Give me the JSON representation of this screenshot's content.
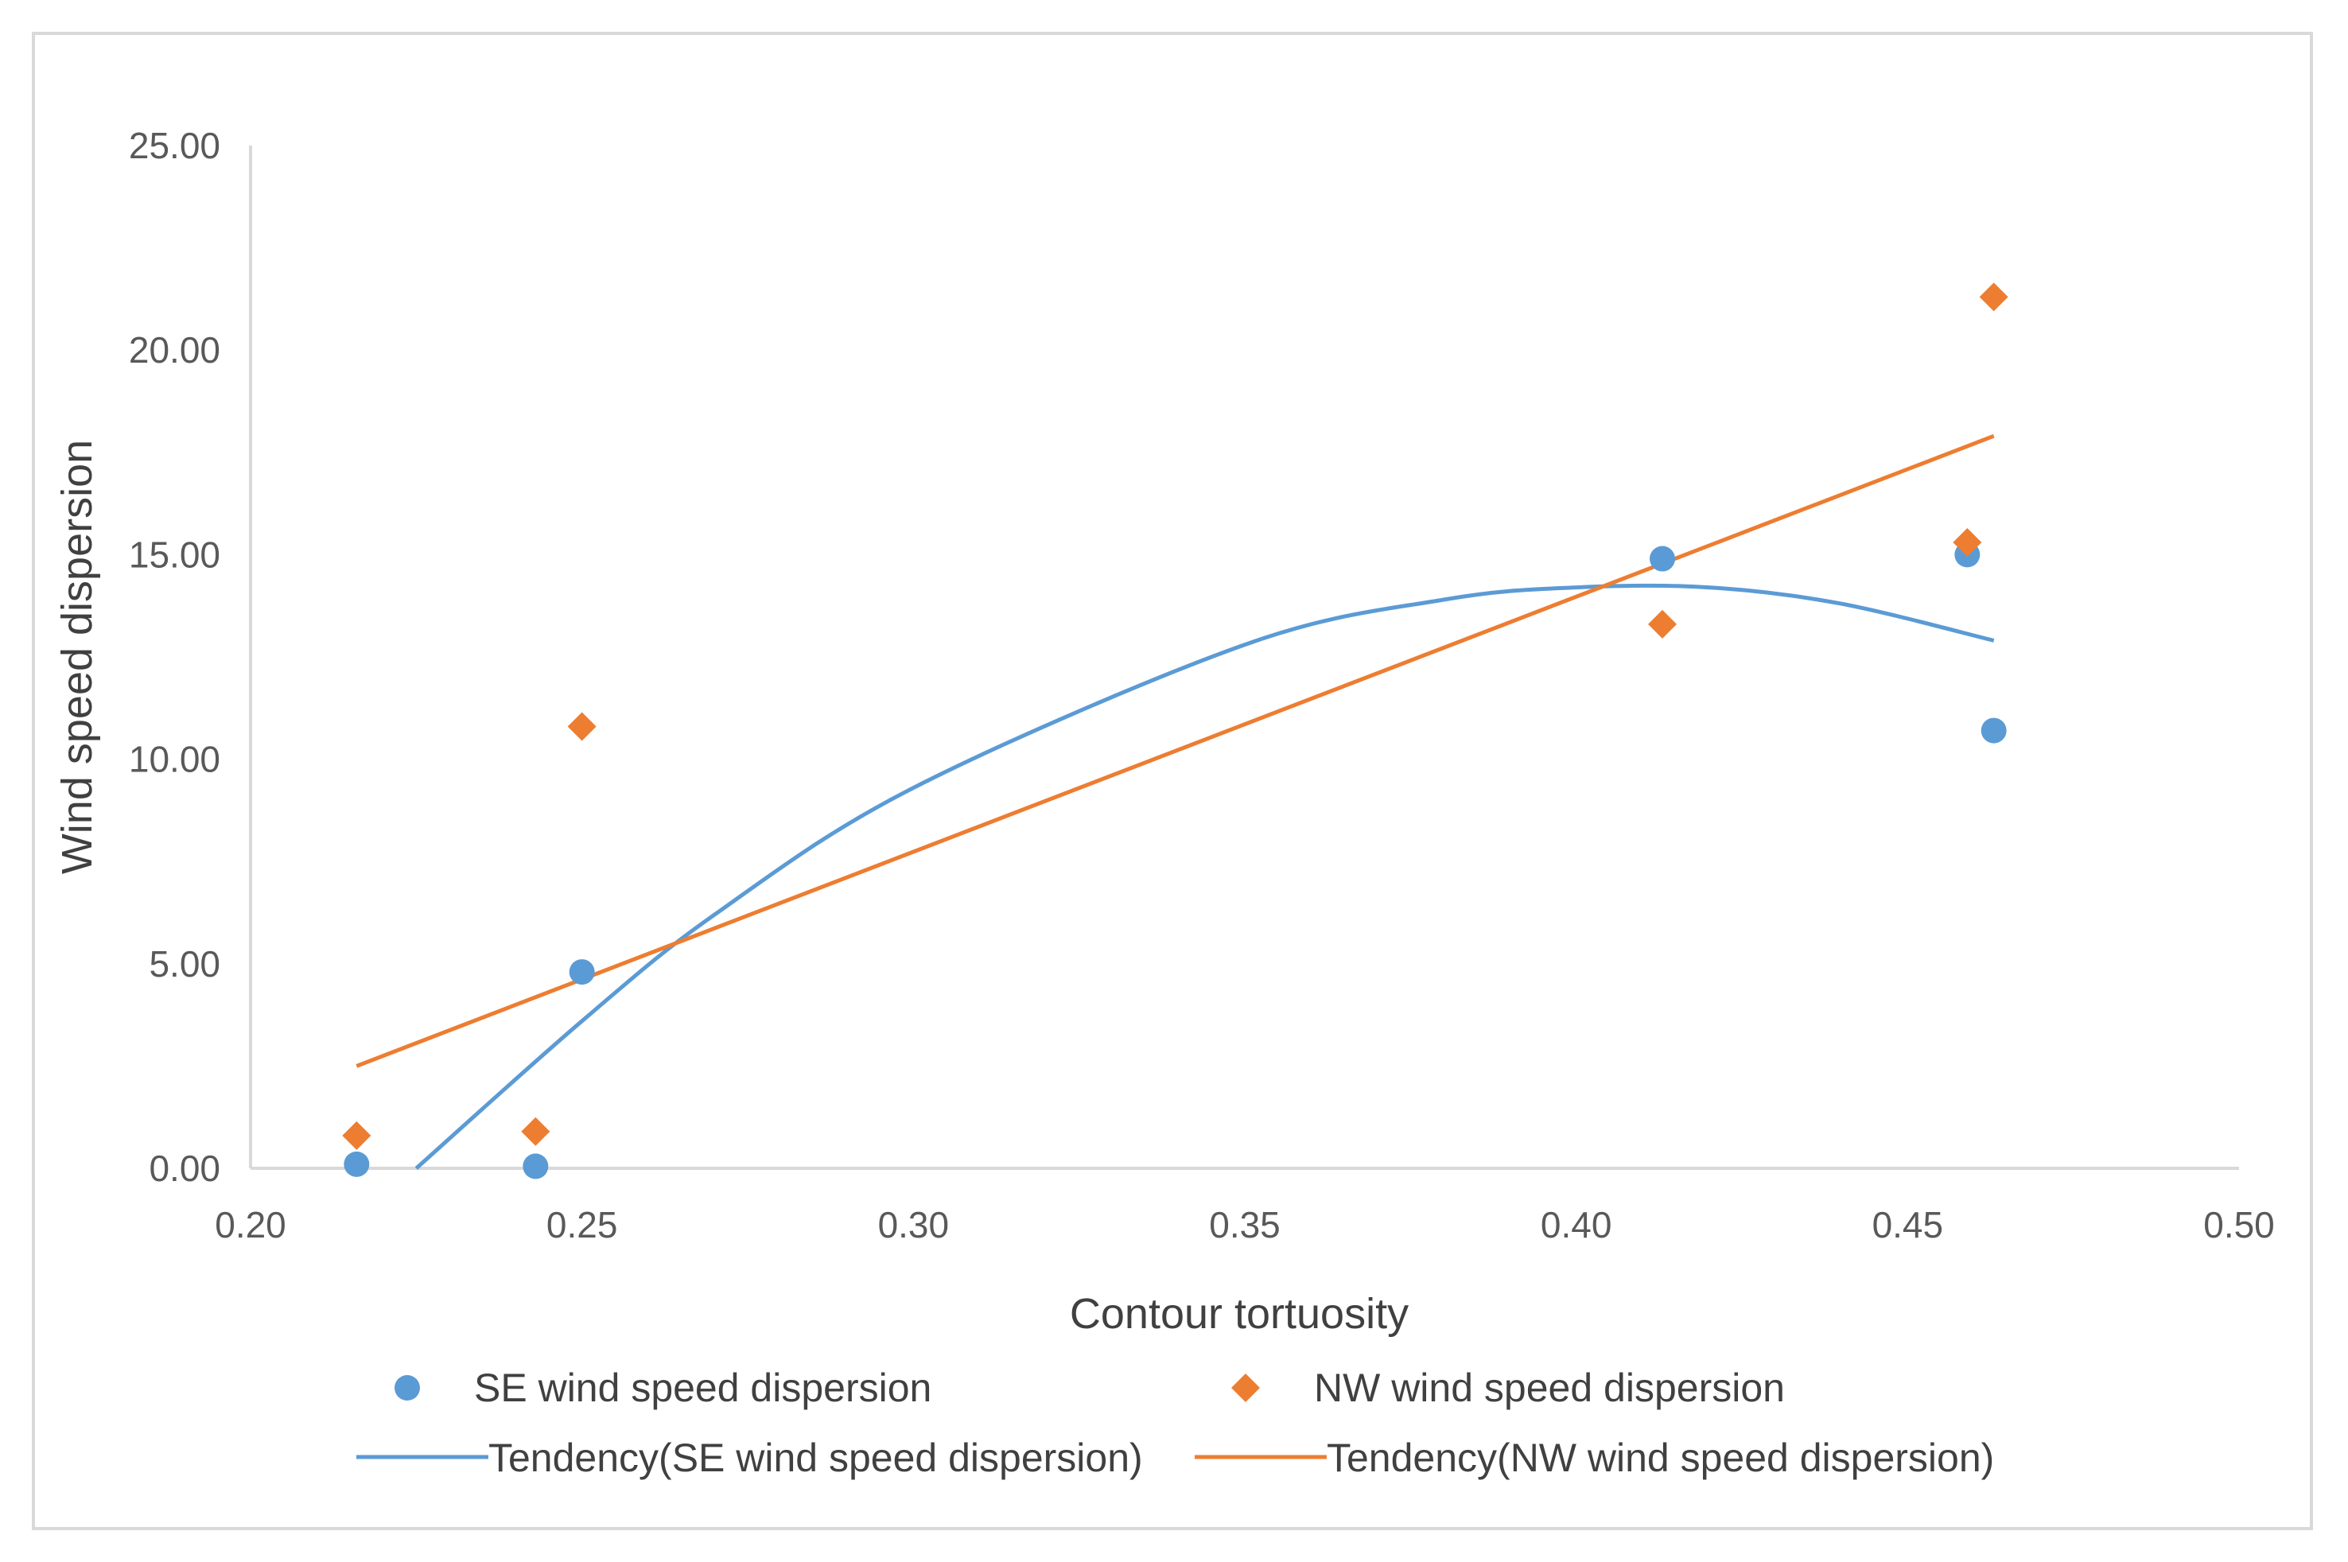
{
  "chart_data": {
    "type": "scatter",
    "title": "",
    "xlabel": "Contour tortuosity",
    "ylabel": "Wind speed dispersion",
    "xlim": [
      0.2,
      0.5
    ],
    "ylim": [
      0.0,
      25.0
    ],
    "x_ticks": [
      "0.20",
      "0.25",
      "0.30",
      "0.35",
      "0.40",
      "0.45",
      "0.50"
    ],
    "y_ticks": [
      "0.00",
      "5.00",
      "10.00",
      "15.00",
      "20.00",
      "25.00"
    ],
    "grid": false,
    "legend_position": "bottom",
    "series": [
      {
        "name": "SE wind speed dispersion",
        "marker": "circle",
        "color": "#5b9bd5",
        "points": [
          [
            0.216,
            0.1
          ],
          [
            0.243,
            0.05
          ],
          [
            0.25,
            4.8
          ],
          [
            0.413,
            14.9
          ],
          [
            0.459,
            15.0
          ],
          [
            0.463,
            10.7
          ]
        ]
      },
      {
        "name": "NW wind speed dispersion",
        "marker": "diamond",
        "color": "#ed7d31",
        "points": [
          [
            0.216,
            0.8
          ],
          [
            0.243,
            0.9
          ],
          [
            0.25,
            10.8
          ],
          [
            0.413,
            13.3
          ],
          [
            0.459,
            15.3
          ],
          [
            0.463,
            21.3
          ]
        ]
      }
    ],
    "trendlines": [
      {
        "name": "Tendency(SE wind speed dispersion)",
        "type": "polynomial",
        "color": "#5b9bd5",
        "x_range": [
          0.216,
          0.463
        ],
        "curve_points": [
          [
            0.225,
            0.0
          ],
          [
            0.25,
            3.6
          ],
          [
            0.27,
            6.2
          ],
          [
            0.3,
            9.3
          ],
          [
            0.35,
            12.8
          ],
          [
            0.38,
            13.9
          ],
          [
            0.4,
            14.2
          ],
          [
            0.42,
            14.2
          ],
          [
            0.44,
            13.8
          ],
          [
            0.463,
            12.9
          ]
        ]
      },
      {
        "name": "Tendency(NW wind speed dispersion)",
        "type": "linear",
        "color": "#ed7d31",
        "x_range": [
          0.216,
          0.463
        ],
        "curve_points": [
          [
            0.216,
            2.5
          ],
          [
            0.463,
            17.9
          ]
        ]
      }
    ]
  },
  "legend": {
    "items": [
      {
        "label": "SE wind speed dispersion",
        "symbol": "circle",
        "color": "#5b9bd5"
      },
      {
        "label": "NW wind speed dispersion",
        "symbol": "diamond",
        "color": "#ed7d31"
      },
      {
        "label": "Tendency(SE wind speed dispersion)",
        "symbol": "line",
        "color": "#5b9bd5"
      },
      {
        "label": "Tendency(NW wind speed dispersion)",
        "symbol": "line",
        "color": "#ed7d31"
      }
    ]
  },
  "colors": {
    "axis": "#d9d9d9",
    "frame": "#d9d9d9"
  }
}
